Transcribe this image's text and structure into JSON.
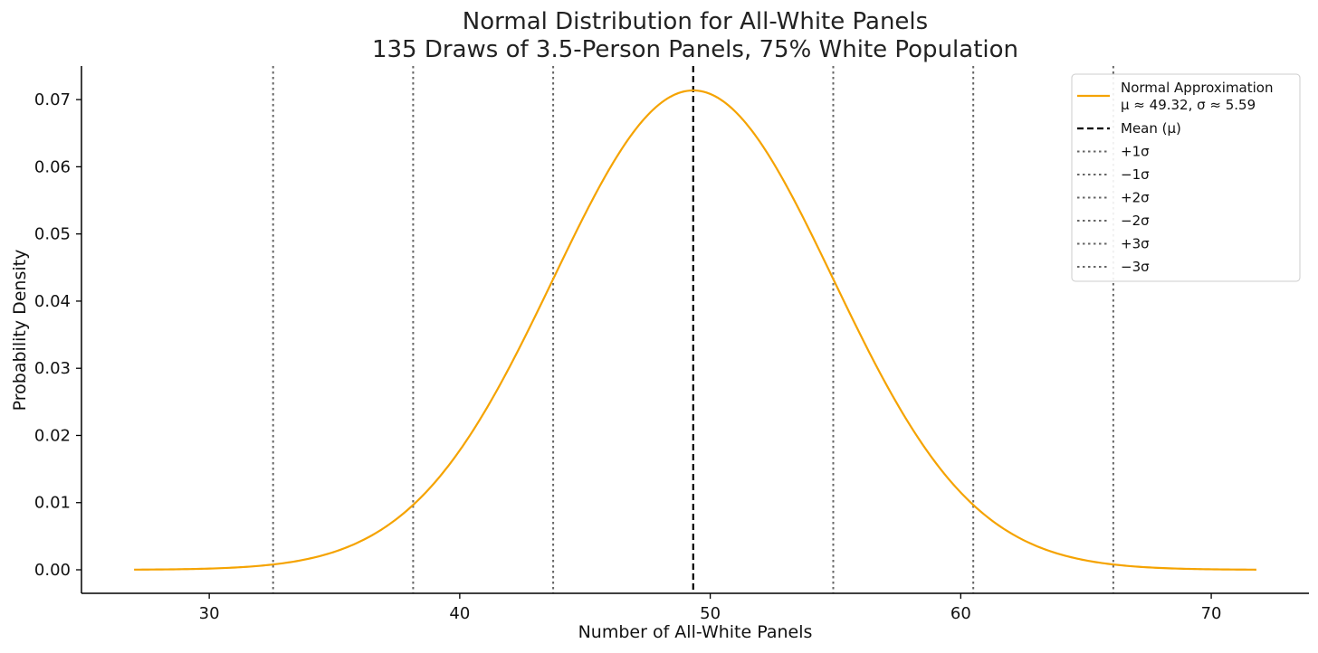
{
  "chart_data": {
    "type": "line",
    "title_lines": [
      "Normal Distribution for All-White Panels",
      "135 Draws of 3.5-Person Panels, 75% White Population"
    ],
    "xlabel": "Number of All-White Panels",
    "ylabel": "Probability Density",
    "xlim": [
      24.9,
      73.9
    ],
    "ylim": [
      -0.0035,
      0.075
    ],
    "xticks": [
      30,
      40,
      50,
      60,
      70
    ],
    "yticks": [
      0.0,
      0.01,
      0.02,
      0.03,
      0.04,
      0.05,
      0.06,
      0.07
    ],
    "ytick_labels": [
      "0.00",
      "0.01",
      "0.02",
      "0.03",
      "0.04",
      "0.05",
      "0.06",
      "0.07"
    ],
    "grid": false,
    "legend_position": "top-right",
    "series": [
      {
        "name": "Normal Approximation",
        "name_line2": "μ ≈ 49.32, σ ≈ 5.59",
        "distribution": "normal",
        "mu": 49.32,
        "sigma": 5.59,
        "x_range": [
          27,
          71.8
        ],
        "color": "#f5a300",
        "style": "solid"
      }
    ],
    "vlines": [
      {
        "name": "Mean (μ)",
        "x": 49.32,
        "color": "#000000",
        "style": "dashed"
      },
      {
        "name": "+1σ",
        "x": 54.91,
        "color": "#666666",
        "style": "dotted"
      },
      {
        "name": "−1σ",
        "x": 43.73,
        "color": "#666666",
        "style": "dotted"
      },
      {
        "name": "+2σ",
        "x": 60.5,
        "color": "#666666",
        "style": "dotted"
      },
      {
        "name": "−2σ",
        "x": 38.14,
        "color": "#666666",
        "style": "dotted"
      },
      {
        "name": "+3σ",
        "x": 66.09,
        "color": "#666666",
        "style": "dotted"
      },
      {
        "name": "−3σ",
        "x": 32.55,
        "color": "#666666",
        "style": "dotted"
      }
    ]
  }
}
